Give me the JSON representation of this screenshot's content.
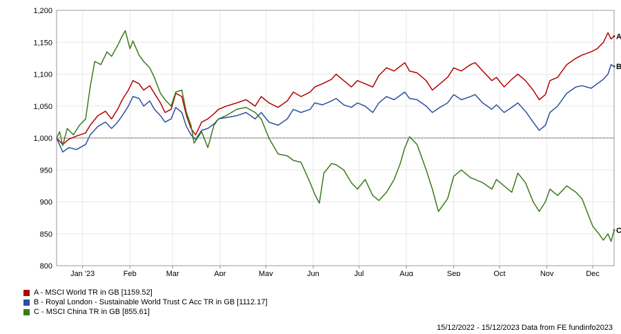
{
  "chart_data": {
    "type": "line",
    "title": "",
    "xlabel": "",
    "ylabel": "",
    "ylim": [
      800,
      1200
    ],
    "yticks": [
      800,
      850,
      900,
      950,
      1000,
      1050,
      1100,
      1150,
      1200
    ],
    "ytick_labels": [
      "800",
      "850",
      "900",
      "950",
      "1,000",
      "1,050",
      "1,100",
      "1,150",
      "1,200"
    ],
    "xlim": [
      "2022-12-15",
      "2023-12-15"
    ],
    "xticks": [
      {
        "label": "Jan '23",
        "date": "2023-01-01"
      },
      {
        "label": "Feb",
        "date": "2023-02-01"
      },
      {
        "label": "Mar",
        "date": "2023-03-01"
      },
      {
        "label": "Apr",
        "date": "2023-04-01"
      },
      {
        "label": "May",
        "date": "2023-05-01"
      },
      {
        "label": "Jun",
        "date": "2023-06-01"
      },
      {
        "label": "Jul",
        "date": "2023-07-01"
      },
      {
        "label": "Aug",
        "date": "2023-08-01"
      },
      {
        "label": "Sep",
        "date": "2023-09-01"
      },
      {
        "label": "Oct",
        "date": "2023-10-01"
      },
      {
        "label": "Nov",
        "date": "2023-11-01"
      },
      {
        "label": "Dec",
        "date": "2023-12-01"
      }
    ],
    "reference_line": 1000,
    "grid": true,
    "legend_position": "bottom-left",
    "series": [
      {
        "id": "A",
        "name": "A - MSCI World TR in GB [1159.52]",
        "end_label": "A",
        "color": "#b40000",
        "points": [
          [
            "2022-12-15",
            1000
          ],
          [
            "2022-12-19",
            990
          ],
          [
            "2022-12-23",
            998
          ],
          [
            "2022-12-28",
            1003
          ],
          [
            "2023-01-03",
            1008
          ],
          [
            "2023-01-06",
            1020
          ],
          [
            "2023-01-11",
            1035
          ],
          [
            "2023-01-16",
            1042
          ],
          [
            "2023-01-20",
            1030
          ],
          [
            "2023-01-24",
            1045
          ],
          [
            "2023-01-27",
            1060
          ],
          [
            "2023-01-31",
            1075
          ],
          [
            "2023-02-03",
            1090
          ],
          [
            "2023-02-07",
            1085
          ],
          [
            "2023-02-10",
            1075
          ],
          [
            "2023-02-14",
            1082
          ],
          [
            "2023-02-17",
            1070
          ],
          [
            "2023-02-21",
            1055
          ],
          [
            "2023-02-24",
            1040
          ],
          [
            "2023-02-28",
            1045
          ],
          [
            "2023-03-03",
            1070
          ],
          [
            "2023-03-07",
            1065
          ],
          [
            "2023-03-10",
            1035
          ],
          [
            "2023-03-13",
            1015
          ],
          [
            "2023-03-16",
            1005
          ],
          [
            "2023-03-20",
            1025
          ],
          [
            "2023-03-24",
            1030
          ],
          [
            "2023-03-28",
            1038
          ],
          [
            "2023-03-31",
            1045
          ],
          [
            "2023-04-05",
            1050
          ],
          [
            "2023-04-12",
            1055
          ],
          [
            "2023-04-18",
            1060
          ],
          [
            "2023-04-24",
            1050
          ],
          [
            "2023-04-28",
            1065
          ],
          [
            "2023-05-03",
            1055
          ],
          [
            "2023-05-09",
            1048
          ],
          [
            "2023-05-15",
            1058
          ],
          [
            "2023-05-19",
            1072
          ],
          [
            "2023-05-24",
            1065
          ],
          [
            "2023-05-30",
            1072
          ],
          [
            "2023-06-02",
            1080
          ],
          [
            "2023-06-07",
            1085
          ],
          [
            "2023-06-13",
            1092
          ],
          [
            "2023-06-16",
            1100
          ],
          [
            "2023-06-21",
            1090
          ],
          [
            "2023-06-26",
            1080
          ],
          [
            "2023-06-30",
            1090
          ],
          [
            "2023-07-05",
            1085
          ],
          [
            "2023-07-10",
            1080
          ],
          [
            "2023-07-14",
            1098
          ],
          [
            "2023-07-19",
            1110
          ],
          [
            "2023-07-24",
            1105
          ],
          [
            "2023-07-31",
            1118
          ],
          [
            "2023-08-03",
            1105
          ],
          [
            "2023-08-08",
            1102
          ],
          [
            "2023-08-14",
            1090
          ],
          [
            "2023-08-18",
            1075
          ],
          [
            "2023-08-23",
            1085
          ],
          [
            "2023-08-28",
            1095
          ],
          [
            "2023-09-01",
            1110
          ],
          [
            "2023-09-06",
            1105
          ],
          [
            "2023-09-12",
            1115
          ],
          [
            "2023-09-15",
            1118
          ],
          [
            "2023-09-20",
            1105
          ],
          [
            "2023-09-26",
            1090
          ],
          [
            "2023-09-29",
            1095
          ],
          [
            "2023-10-04",
            1080
          ],
          [
            "2023-10-09",
            1092
          ],
          [
            "2023-10-13",
            1100
          ],
          [
            "2023-10-18",
            1090
          ],
          [
            "2023-10-23",
            1075
          ],
          [
            "2023-10-27",
            1060
          ],
          [
            "2023-10-31",
            1068
          ],
          [
            "2023-11-03",
            1090
          ],
          [
            "2023-11-08",
            1095
          ],
          [
            "2023-11-14",
            1115
          ],
          [
            "2023-11-20",
            1125
          ],
          [
            "2023-11-24",
            1130
          ],
          [
            "2023-11-30",
            1135
          ],
          [
            "2023-12-04",
            1140
          ],
          [
            "2023-12-08",
            1150
          ],
          [
            "2023-12-11",
            1165
          ],
          [
            "2023-12-13",
            1155
          ],
          [
            "2023-12-15",
            1159.52
          ]
        ]
      },
      {
        "id": "B",
        "name": "B - Royal London - Sustainable World Trust C Acc TR in GB [1112.17]",
        "end_label": "B",
        "color": "#2a4fa0",
        "points": [
          [
            "2022-12-15",
            1000
          ],
          [
            "2022-12-19",
            978
          ],
          [
            "2022-12-23",
            985
          ],
          [
            "2022-12-28",
            982
          ],
          [
            "2023-01-03",
            990
          ],
          [
            "2023-01-06",
            1005
          ],
          [
            "2023-01-11",
            1018
          ],
          [
            "2023-01-16",
            1025
          ],
          [
            "2023-01-20",
            1015
          ],
          [
            "2023-01-24",
            1025
          ],
          [
            "2023-01-27",
            1035
          ],
          [
            "2023-01-31",
            1050
          ],
          [
            "2023-02-03",
            1065
          ],
          [
            "2023-02-07",
            1062
          ],
          [
            "2023-02-10",
            1050
          ],
          [
            "2023-02-14",
            1058
          ],
          [
            "2023-02-17",
            1045
          ],
          [
            "2023-02-21",
            1035
          ],
          [
            "2023-02-24",
            1025
          ],
          [
            "2023-02-28",
            1030
          ],
          [
            "2023-03-03",
            1048
          ],
          [
            "2023-03-07",
            1040
          ],
          [
            "2023-03-10",
            1018
          ],
          [
            "2023-03-13",
            1005
          ],
          [
            "2023-03-16",
            998
          ],
          [
            "2023-03-20",
            1012
          ],
          [
            "2023-03-24",
            1015
          ],
          [
            "2023-03-28",
            1022
          ],
          [
            "2023-03-31",
            1030
          ],
          [
            "2023-04-05",
            1032
          ],
          [
            "2023-04-12",
            1035
          ],
          [
            "2023-04-18",
            1040
          ],
          [
            "2023-04-24",
            1030
          ],
          [
            "2023-04-28",
            1040
          ],
          [
            "2023-05-03",
            1025
          ],
          [
            "2023-05-09",
            1020
          ],
          [
            "2023-05-15",
            1030
          ],
          [
            "2023-05-19",
            1045
          ],
          [
            "2023-05-24",
            1040
          ],
          [
            "2023-05-30",
            1045
          ],
          [
            "2023-06-02",
            1055
          ],
          [
            "2023-06-07",
            1052
          ],
          [
            "2023-06-13",
            1058
          ],
          [
            "2023-06-16",
            1062
          ],
          [
            "2023-06-21",
            1052
          ],
          [
            "2023-06-26",
            1048
          ],
          [
            "2023-06-30",
            1055
          ],
          [
            "2023-07-05",
            1050
          ],
          [
            "2023-07-10",
            1040
          ],
          [
            "2023-07-14",
            1055
          ],
          [
            "2023-07-19",
            1065
          ],
          [
            "2023-07-24",
            1060
          ],
          [
            "2023-07-31",
            1072
          ],
          [
            "2023-08-03",
            1062
          ],
          [
            "2023-08-08",
            1060
          ],
          [
            "2023-08-14",
            1050
          ],
          [
            "2023-08-18",
            1040
          ],
          [
            "2023-08-23",
            1048
          ],
          [
            "2023-08-28",
            1055
          ],
          [
            "2023-09-01",
            1068
          ],
          [
            "2023-09-06",
            1060
          ],
          [
            "2023-09-12",
            1065
          ],
          [
            "2023-09-15",
            1068
          ],
          [
            "2023-09-20",
            1055
          ],
          [
            "2023-09-26",
            1045
          ],
          [
            "2023-09-29",
            1052
          ],
          [
            "2023-10-04",
            1040
          ],
          [
            "2023-10-09",
            1048
          ],
          [
            "2023-10-13",
            1055
          ],
          [
            "2023-10-18",
            1042
          ],
          [
            "2023-10-23",
            1025
          ],
          [
            "2023-10-27",
            1012
          ],
          [
            "2023-10-31",
            1020
          ],
          [
            "2023-11-03",
            1040
          ],
          [
            "2023-11-08",
            1050
          ],
          [
            "2023-11-14",
            1070
          ],
          [
            "2023-11-20",
            1080
          ],
          [
            "2023-11-24",
            1082
          ],
          [
            "2023-11-30",
            1078
          ],
          [
            "2023-12-04",
            1085
          ],
          [
            "2023-12-08",
            1092
          ],
          [
            "2023-12-11",
            1100
          ],
          [
            "2023-12-13",
            1115
          ],
          [
            "2023-12-15",
            1112.17
          ]
        ]
      },
      {
        "id": "C",
        "name": "C - MSCI China TR in GB [855.61]",
        "end_label": "C",
        "color": "#3a7a1a",
        "points": [
          [
            "2022-12-15",
            1000
          ],
          [
            "2022-12-17",
            1010
          ],
          [
            "2022-12-19",
            988
          ],
          [
            "2022-12-22",
            1015
          ],
          [
            "2022-12-26",
            1005
          ],
          [
            "2022-12-30",
            1020
          ],
          [
            "2023-01-03",
            1030
          ],
          [
            "2023-01-06",
            1080
          ],
          [
            "2023-01-09",
            1120
          ],
          [
            "2023-01-13",
            1115
          ],
          [
            "2023-01-17",
            1135
          ],
          [
            "2023-01-20",
            1128
          ],
          [
            "2023-01-24",
            1145
          ],
          [
            "2023-01-27",
            1160
          ],
          [
            "2023-01-29",
            1168
          ],
          [
            "2023-02-01",
            1140
          ],
          [
            "2023-02-03",
            1152
          ],
          [
            "2023-02-07",
            1130
          ],
          [
            "2023-02-10",
            1120
          ],
          [
            "2023-02-14",
            1110
          ],
          [
            "2023-02-17",
            1095
          ],
          [
            "2023-02-21",
            1070
          ],
          [
            "2023-02-24",
            1060
          ],
          [
            "2023-02-28",
            1050
          ],
          [
            "2023-03-03",
            1072
          ],
          [
            "2023-03-07",
            1075
          ],
          [
            "2023-03-10",
            1040
          ],
          [
            "2023-03-13",
            1020
          ],
          [
            "2023-03-15",
            992
          ],
          [
            "2023-03-20",
            1010
          ],
          [
            "2023-03-24",
            985
          ],
          [
            "2023-03-28",
            1020
          ],
          [
            "2023-03-31",
            1030
          ],
          [
            "2023-04-05",
            1035
          ],
          [
            "2023-04-12",
            1045
          ],
          [
            "2023-04-18",
            1048
          ],
          [
            "2023-04-24",
            1040
          ],
          [
            "2023-04-28",
            1030
          ],
          [
            "2023-05-03",
            1000
          ],
          [
            "2023-05-09",
            975
          ],
          [
            "2023-05-15",
            972
          ],
          [
            "2023-05-19",
            965
          ],
          [
            "2023-05-24",
            962
          ],
          [
            "2023-05-30",
            930
          ],
          [
            "2023-06-02",
            912
          ],
          [
            "2023-06-05",
            898
          ],
          [
            "2023-06-08",
            945
          ],
          [
            "2023-06-13",
            960
          ],
          [
            "2023-06-16",
            958
          ],
          [
            "2023-06-21",
            950
          ],
          [
            "2023-06-26",
            930
          ],
          [
            "2023-06-30",
            920
          ],
          [
            "2023-07-05",
            935
          ],
          [
            "2023-07-10",
            910
          ],
          [
            "2023-07-14",
            902
          ],
          [
            "2023-07-19",
            915
          ],
          [
            "2023-07-24",
            935
          ],
          [
            "2023-07-28",
            960
          ],
          [
            "2023-07-31",
            985
          ],
          [
            "2023-08-03",
            1002
          ],
          [
            "2023-08-08",
            990
          ],
          [
            "2023-08-14",
            950
          ],
          [
            "2023-08-18",
            920
          ],
          [
            "2023-08-22",
            885
          ],
          [
            "2023-08-28",
            905
          ],
          [
            "2023-09-01",
            940
          ],
          [
            "2023-09-06",
            950
          ],
          [
            "2023-09-12",
            938
          ],
          [
            "2023-09-15",
            935
          ],
          [
            "2023-09-20",
            930
          ],
          [
            "2023-09-26",
            920
          ],
          [
            "2023-09-29",
            935
          ],
          [
            "2023-10-04",
            925
          ],
          [
            "2023-10-09",
            915
          ],
          [
            "2023-10-13",
            945
          ],
          [
            "2023-10-18",
            930
          ],
          [
            "2023-10-23",
            900
          ],
          [
            "2023-10-27",
            885
          ],
          [
            "2023-10-31",
            900
          ],
          [
            "2023-11-03",
            920
          ],
          [
            "2023-11-08",
            910
          ],
          [
            "2023-11-14",
            925
          ],
          [
            "2023-11-20",
            915
          ],
          [
            "2023-11-24",
            905
          ],
          [
            "2023-11-28",
            880
          ],
          [
            "2023-12-01",
            862
          ],
          [
            "2023-12-05",
            850
          ],
          [
            "2023-12-08",
            840
          ],
          [
            "2023-12-11",
            850
          ],
          [
            "2023-12-13",
            838
          ],
          [
            "2023-12-15",
            855.61
          ]
        ]
      }
    ]
  },
  "footer": "15/12/2022 - 15/12/2023 Data from FE fundinfo2023"
}
